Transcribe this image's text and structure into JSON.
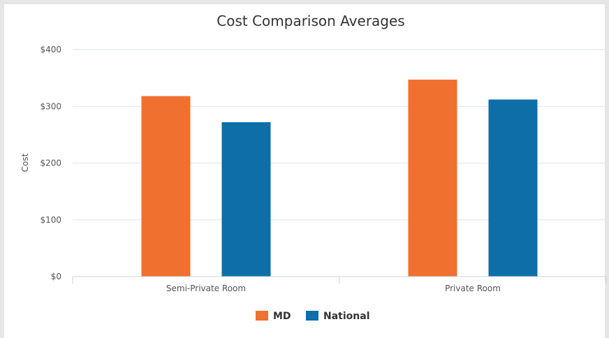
{
  "chart_data": {
    "type": "bar",
    "title": "Cost Comparison Averages",
    "ylabel": "Cost",
    "xlabel": "",
    "categories": [
      "Semi-Private Room",
      "Private Room"
    ],
    "series": [
      {
        "name": "MD",
        "values": [
          318,
          347
        ],
        "color": "#f07030"
      },
      {
        "name": "National",
        "values": [
          272,
          312
        ],
        "color": "#0d6ea8"
      }
    ],
    "ylim": [
      0,
      400
    ],
    "yticks": [
      0,
      100,
      200,
      300,
      400
    ],
    "ytick_labels": [
      "$0",
      "$100",
      "$200",
      "$300",
      "$400"
    ],
    "grid": true,
    "legend_position": "bottom-center",
    "colors": {
      "grid": "#dde3ea",
      "axis": "#c8d3e0",
      "text": "#333333",
      "tick_text": "#555555"
    }
  }
}
